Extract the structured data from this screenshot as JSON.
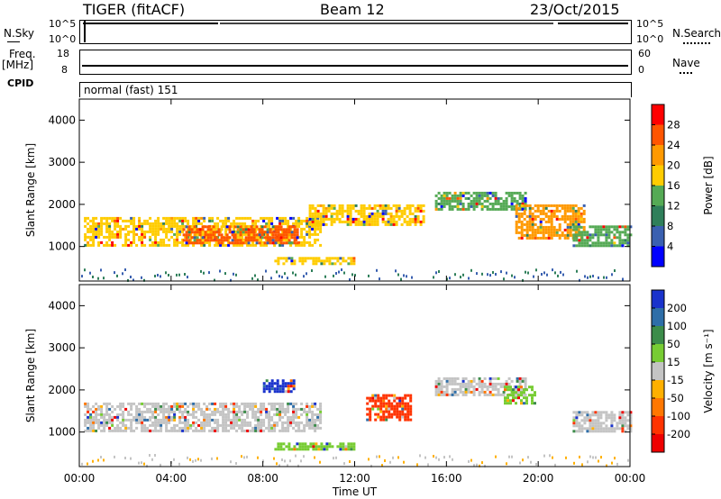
{
  "header": {
    "radar": "TIGER (fitACF)",
    "beam": "Beam 12",
    "date": "23/Oct/2015"
  },
  "left_labels": {
    "nsky": "N.Sky",
    "freq": "Freq.",
    "mhz": "[MHz]",
    "cpid": "CPID"
  },
  "right_labels": {
    "nsearch": "N.Search",
    "nave": "Nave"
  },
  "small_ticks": {
    "nsky_top": "10^5",
    "nsky_bot": "10^0",
    "freq_top": "18",
    "freq_bot": "8",
    "nave_top": "60",
    "nave_bot": "0"
  },
  "cpid_text": "normal (fast) 151",
  "chart_data": [
    {
      "type": "heatmap",
      "panel": "power",
      "xlabel": "Time UT",
      "ylabel": "Slant Range [km]",
      "x_ticks": [
        "00:00",
        "04:00",
        "08:00",
        "12:00",
        "16:00",
        "20:00",
        "00:00"
      ],
      "y_ticks": [
        1000,
        2000,
        3000,
        4000
      ],
      "ylim": [
        180,
        4500
      ],
      "xlim_hours": [
        0,
        24
      ],
      "colorbar_label": "Power [dB]",
      "colorbar_ticks": [
        "28",
        "24",
        "20",
        "16",
        "12",
        "8",
        "4"
      ],
      "colorbar_colors": [
        "#ff0000",
        "#ff5500",
        "#ff9900",
        "#ffcc00",
        "#55aa55",
        "#2f7f5a",
        "#3a60b0",
        "#0000ff"
      ],
      "echo_bands": [
        {
          "start_hour": 0.2,
          "end_hour": 10.5,
          "range_low_km": 1000,
          "range_high_km": 1700,
          "power_db": 18
        },
        {
          "start_hour": 4.5,
          "end_hour": 9.5,
          "range_low_km": 1100,
          "range_high_km": 1500,
          "power_db": 27
        },
        {
          "start_hour": 8.5,
          "end_hour": 12.0,
          "range_low_km": 600,
          "range_high_km": 750,
          "power_db": 18
        },
        {
          "start_hour": 10.0,
          "end_hour": 15.0,
          "range_low_km": 1500,
          "range_high_km": 2000,
          "power_db": 16
        },
        {
          "start_hour": 15.5,
          "end_hour": 19.5,
          "range_low_km": 1900,
          "range_high_km": 2300,
          "power_db": 13
        },
        {
          "start_hour": 19.0,
          "end_hour": 22.0,
          "range_low_km": 1200,
          "range_high_km": 2000,
          "power_db": 20
        },
        {
          "start_hour": 21.5,
          "end_hour": 24.0,
          "range_low_km": 1000,
          "range_high_km": 1500,
          "power_db": 12
        }
      ]
    },
    {
      "type": "heatmap",
      "panel": "velocity",
      "xlabel": "Time UT",
      "ylabel": "Slant Range [km]",
      "x_ticks": [
        "00:00",
        "04:00",
        "08:00",
        "12:00",
        "16:00",
        "20:00",
        "00:00"
      ],
      "y_ticks": [
        1000,
        2000,
        3000,
        4000
      ],
      "ylim": [
        180,
        4500
      ],
      "xlim_hours": [
        0,
        24
      ],
      "colorbar_label": "Velocity [m s⁻¹]",
      "colorbar_ticks": [
        "200",
        "100",
        "50",
        "15",
        "-15",
        "-50",
        "-100",
        "-200"
      ],
      "colorbar_colors": [
        "#1a33cc",
        "#2e6ea8",
        "#3c8c4a",
        "#77cc33",
        "#c4c4c4",
        "#ffb000",
        "#ff7700",
        "#ff3300",
        "#ee0000"
      ],
      "echo_bands": [
        {
          "start_hour": 0.2,
          "end_hour": 10.5,
          "range_low_km": 1000,
          "range_high_km": 1700,
          "velocity_ms": 0
        },
        {
          "start_hour": 8.0,
          "end_hour": 9.3,
          "range_low_km": 1950,
          "range_high_km": 2250,
          "velocity_ms": 200
        },
        {
          "start_hour": 8.5,
          "end_hour": 12.0,
          "range_low_km": 600,
          "range_high_km": 750,
          "velocity_ms": 20
        },
        {
          "start_hour": 12.5,
          "end_hour": 14.5,
          "range_low_km": 1300,
          "range_high_km": 1900,
          "velocity_ms": -150
        },
        {
          "start_hour": 15.5,
          "end_hour": 19.5,
          "range_low_km": 1900,
          "range_high_km": 2300,
          "velocity_ms": 0
        },
        {
          "start_hour": 18.5,
          "end_hour": 19.8,
          "range_low_km": 1700,
          "range_high_km": 2100,
          "velocity_ms": 30
        },
        {
          "start_hour": 21.5,
          "end_hour": 24.0,
          "range_low_km": 1000,
          "range_high_km": 1500,
          "velocity_ms": 0
        }
      ]
    }
  ]
}
